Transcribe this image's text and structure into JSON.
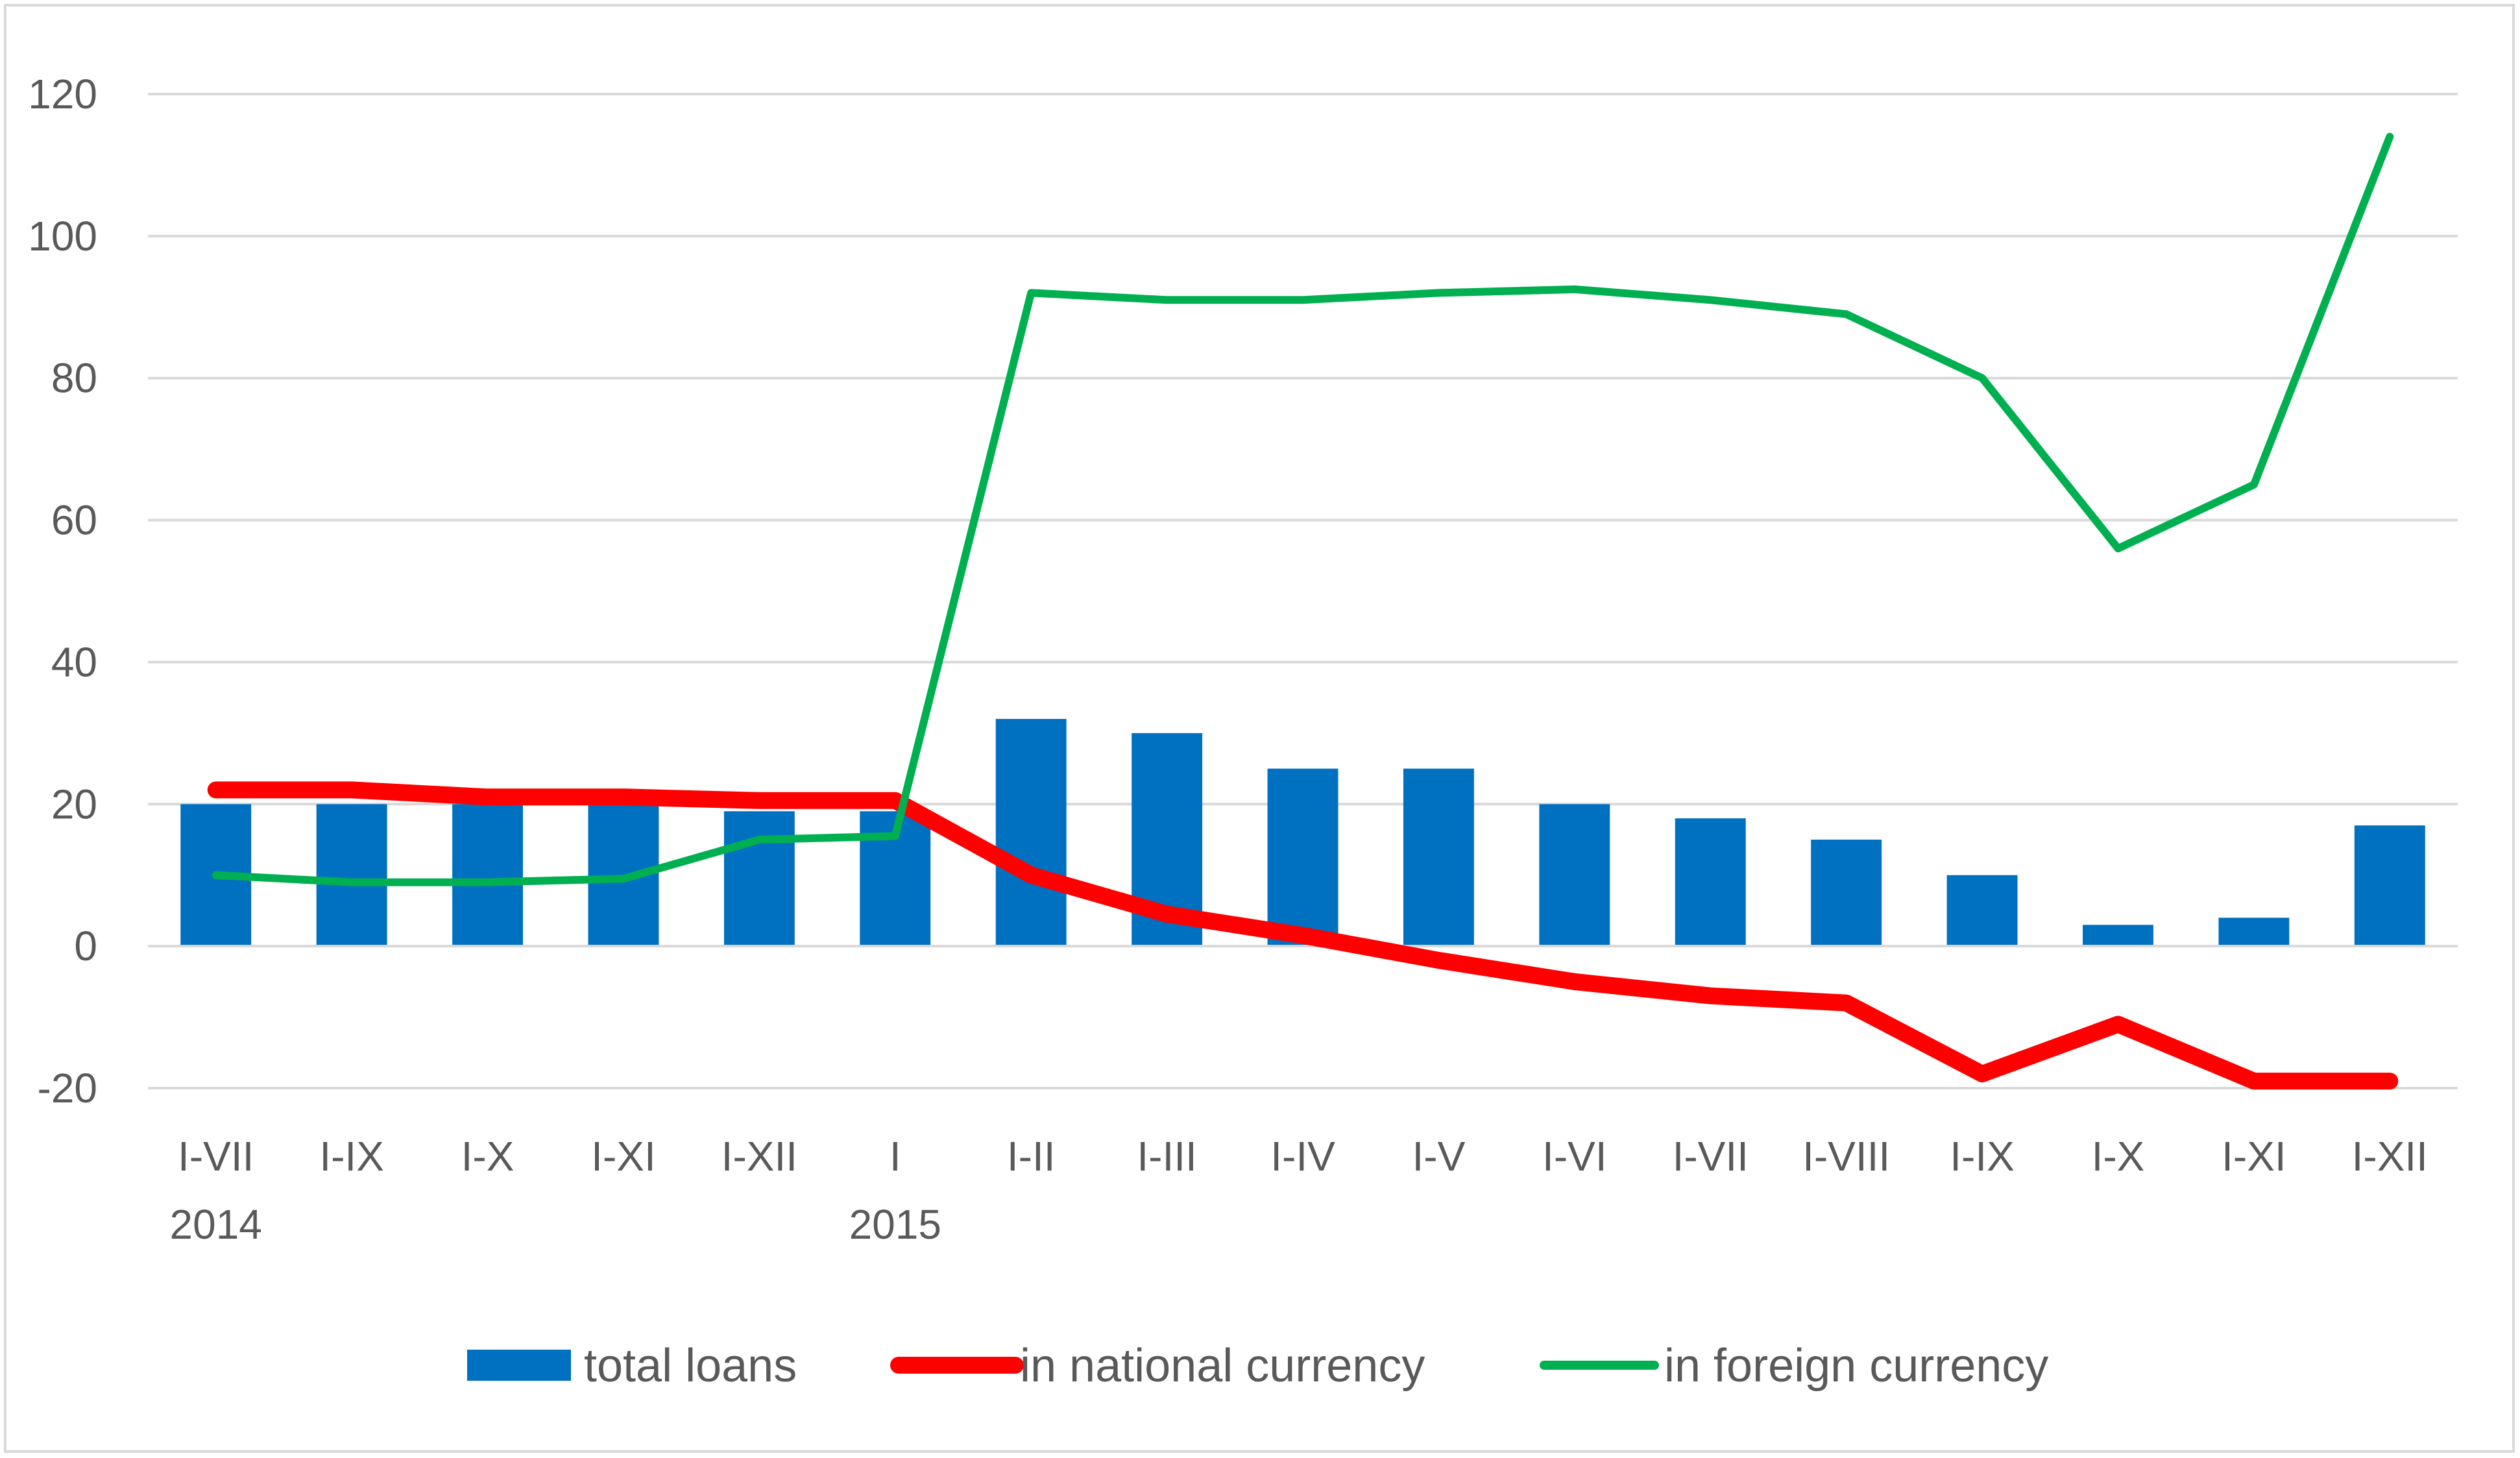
{
  "chart_data": {
    "type": "bar",
    "title": "",
    "xlabel": "",
    "ylabel": "",
    "ylim": [
      -20,
      120
    ],
    "yticks": [
      -20,
      0,
      20,
      40,
      60,
      80,
      100,
      120
    ],
    "grid": true,
    "legend_position": "bottom",
    "categories": [
      "I-VII",
      "I-IX",
      "I-X",
      "I-XI",
      "I-XII",
      "I",
      "I-II",
      "I-III",
      "I-IV",
      "I-V",
      "I-VI",
      "I-VII",
      "I-VIII",
      "I-IX",
      "I-X",
      "I-XI",
      "I-XII"
    ],
    "year_labels": [
      {
        "index": 0,
        "label": "2014"
      },
      {
        "index": 5,
        "label": "2015"
      }
    ],
    "series": [
      {
        "name": "total loans",
        "kind": "bar",
        "color": "#0070c0",
        "values": [
          20,
          20,
          20,
          20,
          19,
          19,
          32,
          30,
          25,
          25,
          20,
          18,
          15,
          10,
          3,
          4,
          17
        ]
      },
      {
        "name": "in national currency",
        "kind": "line",
        "color": "#ff0000",
        "values": [
          22,
          22,
          21,
          21,
          20.5,
          20.5,
          10,
          4.5,
          1.5,
          -2,
          -5,
          -7,
          -8,
          -18,
          -11,
          -19,
          -19
        ]
      },
      {
        "name": "in foreign currency",
        "kind": "line",
        "color": "#00b050",
        "values": [
          10,
          9,
          9,
          9.5,
          15,
          15.5,
          92,
          91,
          91,
          92,
          92.5,
          91,
          89,
          80,
          56,
          65,
          114
        ]
      }
    ]
  }
}
